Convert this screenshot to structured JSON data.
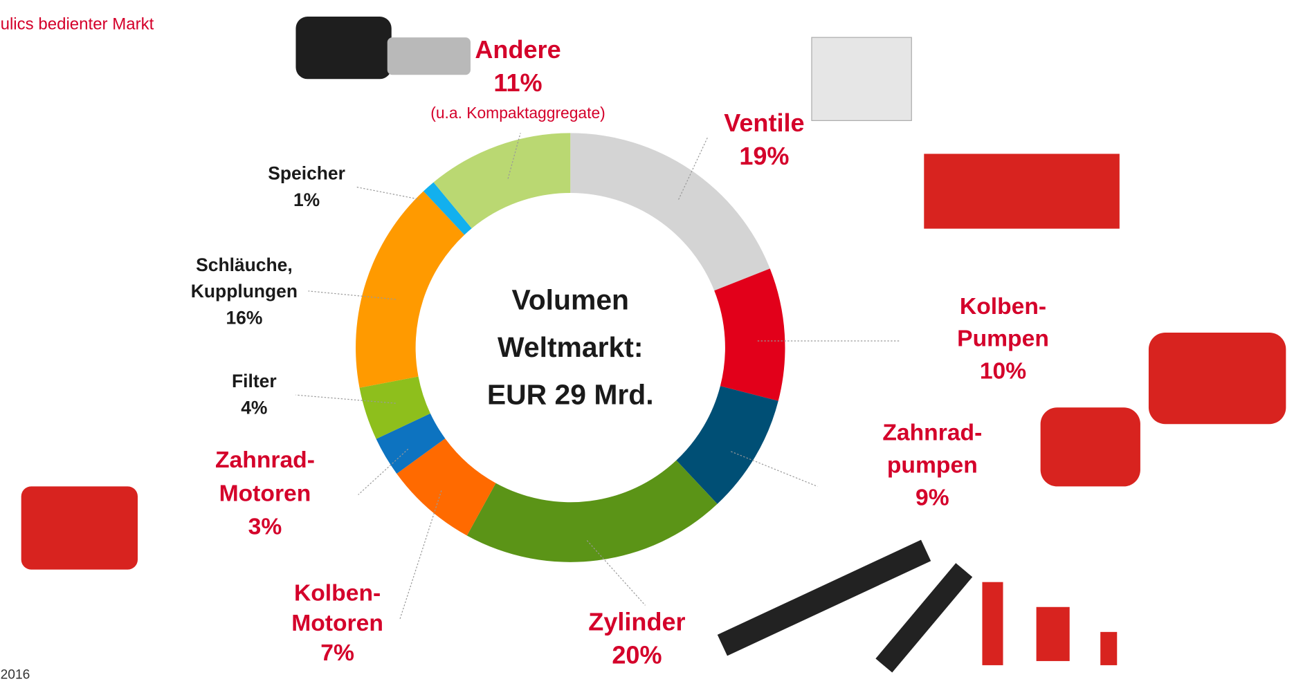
{
  "chart_data": {
    "type": "donut",
    "title": "ulics bedienter Markt",
    "footer": "2016",
    "center_lines": [
      "Volumen",
      "Weltmarkt:",
      "EUR 29 Mrd."
    ],
    "series": [
      {
        "label_lines": [
          "Ventile"
        ],
        "value": 19,
        "value_label": "19%",
        "color": "#d4d4d4",
        "label_color": "#d4002a"
      },
      {
        "label_lines": [
          "Kolben-",
          "Pumpen"
        ],
        "value": 10,
        "value_label": "10%",
        "color": "#e2001a",
        "label_color": "#d4002a"
      },
      {
        "label_lines": [
          "Zahnrad-",
          "pumpen"
        ],
        "value": 9,
        "value_label": "9%",
        "color": "#004f75",
        "label_color": "#d4002a"
      },
      {
        "label_lines": [
          "Zylinder"
        ],
        "value": 20,
        "value_label": "20%",
        "color": "#5b9417",
        "label_color": "#d4002a"
      },
      {
        "label_lines": [
          "Kolben-",
          "Motoren"
        ],
        "value": 7,
        "value_label": "7%",
        "color": "#ff6a00",
        "label_color": "#d4002a"
      },
      {
        "label_lines": [
          "Zahnrad-",
          "Motoren"
        ],
        "value": 3,
        "value_label": "3%",
        "color": "#0d73c0",
        "label_color": "#d4002a"
      },
      {
        "label_lines": [
          "Filter"
        ],
        "value": 4,
        "value_label": "4%",
        "color": "#8ebf1c",
        "label_color": "#1a1a1a"
      },
      {
        "label_lines": [
          "Schläuche,",
          "Kupplungen"
        ],
        "value": 16,
        "value_label": "16%",
        "color": "#ff9a00",
        "label_color": "#1a1a1a"
      },
      {
        "label_lines": [
          "Speicher"
        ],
        "value": 1,
        "value_label": "1%",
        "color": "#12b0ee",
        "label_color": "#1a1a1a"
      },
      {
        "label_lines": [
          "Andere"
        ],
        "value": 11,
        "value_label": "11%",
        "color": "#bad872",
        "label_color": "#d4002a",
        "note": "(u.a. Kompaktaggregate)"
      }
    ]
  }
}
